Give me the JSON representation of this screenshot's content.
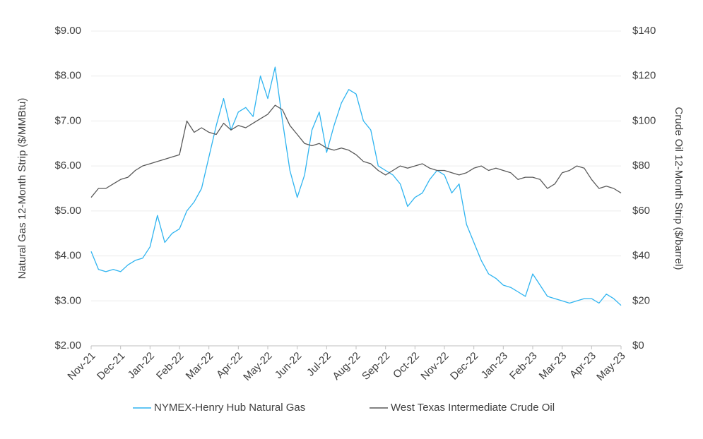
{
  "chart_data": {
    "type": "line",
    "y_label": "Natural Gas 12-Month Strip ($/MMBtu)",
    "y2_label": "Crude Oil 12-Month Strip ($/barrel)",
    "categories": [
      "Nov-21",
      null,
      null,
      null,
      "Dec-21",
      null,
      null,
      null,
      "Jan-22",
      null,
      null,
      null,
      "Feb-22",
      null,
      null,
      null,
      "Mar-22",
      null,
      null,
      null,
      "Apr-22",
      null,
      null,
      null,
      "May-22",
      null,
      null,
      null,
      "Jun-22",
      null,
      null,
      null,
      "Jul-22",
      null,
      null,
      null,
      "Aug-22",
      null,
      null,
      null,
      "Sep-22",
      null,
      null,
      null,
      "Oct-22",
      null,
      null,
      null,
      "Nov-22",
      null,
      null,
      null,
      "Dec-22",
      null,
      null,
      null,
      "Jan-23",
      null,
      null,
      null,
      "Feb-23",
      null,
      null,
      null,
      "Mar-23",
      null,
      null,
      null,
      "Apr-23",
      null,
      null,
      null,
      "May-23"
    ],
    "series": [
      {
        "name": "NYMEX-Henry Hub Natural Gas",
        "color": "#2fb4f0",
        "axis": "y",
        "values": [
          4.1,
          3.7,
          3.65,
          3.7,
          3.65,
          3.8,
          3.9,
          3.95,
          4.2,
          4.9,
          4.3,
          4.5,
          4.6,
          5.0,
          5.2,
          5.5,
          6.2,
          6.9,
          7.5,
          6.8,
          7.2,
          7.3,
          7.1,
          8.0,
          7.5,
          8.2,
          7.0,
          5.9,
          5.3,
          5.8,
          6.8,
          7.2,
          6.3,
          6.9,
          7.4,
          7.7,
          7.6,
          7.0,
          6.8,
          6.0,
          5.9,
          5.8,
          5.6,
          5.1,
          5.3,
          5.4,
          5.7,
          5.9,
          5.8,
          5.4,
          5.6,
          4.7,
          4.3,
          3.9,
          3.6,
          3.5,
          3.35,
          3.3,
          3.2,
          3.1,
          3.6,
          3.35,
          3.1,
          3.05,
          3.0,
          2.95,
          3.0,
          3.05,
          3.05,
          2.95,
          3.15,
          3.05,
          2.9
        ]
      },
      {
        "name": "West Texas Intermediate Crude Oil",
        "color": "#595959",
        "axis": "y2",
        "values": [
          66,
          70,
          70,
          72,
          74,
          75,
          78,
          80,
          81,
          82,
          83,
          84,
          85,
          100,
          95,
          97,
          95,
          94,
          99,
          96,
          98,
          97,
          99,
          101,
          103,
          107,
          105,
          98,
          94,
          90,
          89,
          90,
          88,
          87,
          88,
          87,
          85,
          82,
          81,
          78,
          76,
          78,
          80,
          79,
          80,
          81,
          79,
          78,
          78,
          77,
          76,
          77,
          79,
          80,
          78,
          79,
          78,
          77,
          74,
          75,
          75,
          74,
          70,
          72,
          77,
          78,
          80,
          79,
          74,
          70,
          71,
          70,
          68
        ]
      }
    ],
    "ylim": [
      2,
      9
    ],
    "yticks": [
      {
        "value": 2,
        "label": "$2.00"
      },
      {
        "value": 3,
        "label": "$3.00"
      },
      {
        "value": 4,
        "label": "$4.00"
      },
      {
        "value": 5,
        "label": "$5.00"
      },
      {
        "value": 6,
        "label": "$6.00"
      },
      {
        "value": 7,
        "label": "$7.00"
      },
      {
        "value": 8,
        "label": "$8.00"
      },
      {
        "value": 9,
        "label": "$9.00"
      }
    ],
    "y2lim": [
      0,
      140
    ],
    "y2ticks": [
      {
        "value": 0,
        "label": "$0"
      },
      {
        "value": 20,
        "label": "$20"
      },
      {
        "value": 40,
        "label": "$40"
      },
      {
        "value": 60,
        "label": "$60"
      },
      {
        "value": 80,
        "label": "$80"
      },
      {
        "value": 100,
        "label": "$100"
      },
      {
        "value": 120,
        "label": "$120"
      },
      {
        "value": 140,
        "label": "$140"
      }
    ],
    "grid": true,
    "legend": "bottom"
  }
}
